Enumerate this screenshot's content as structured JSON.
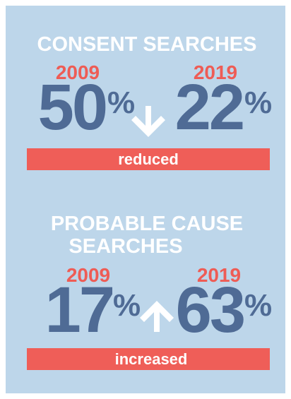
{
  "sections": [
    {
      "title_lines": [
        "CONSENT SEARCHES"
      ],
      "before": {
        "year": "2009",
        "value": 50,
        "unit": "%"
      },
      "after": {
        "year": "2019",
        "value": 22,
        "unit": "%"
      },
      "change": "reduced"
    },
    {
      "title_lines": [
        "PROBABLE CAUSE",
        "SEARCHES"
      ],
      "before": {
        "year": "2009",
        "value": 17,
        "unit": "%"
      },
      "after": {
        "year": "2019",
        "value": 63,
        "unit": "%"
      },
      "change": "increased"
    }
  ]
}
